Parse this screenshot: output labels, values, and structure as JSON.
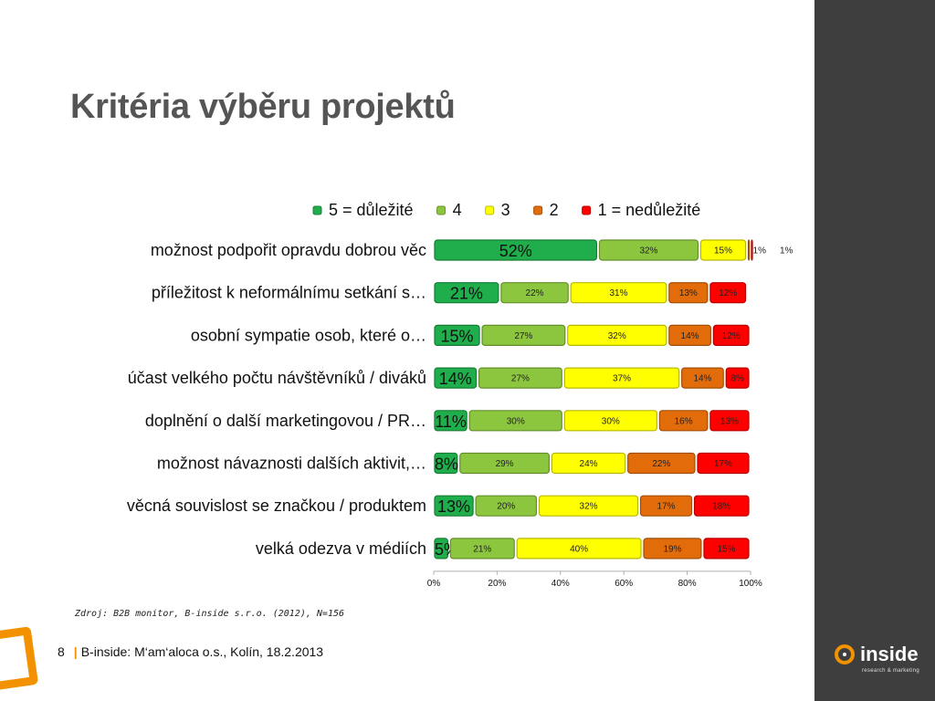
{
  "slide": {
    "title": "Kritéria výběru projektů",
    "source": "Zdroj: B2B monitor, B-inside s.r.o. (2012), N=156",
    "footer_page": "8",
    "footer_separator": "|",
    "footer_text": "B-inside: M‘am‘aloca o.s., Kolín, 18.2.2013",
    "logo_text": "inside",
    "logo_subtext": "research & marketing",
    "accent_color": "#f39200",
    "side_panel_color": "#3e3e3e"
  },
  "chart_data": {
    "type": "bar",
    "orientation": "horizontal",
    "stacked": true,
    "percent_stacked": true,
    "title": "",
    "xlabel": "",
    "ylabel": "",
    "xlim": [
      0,
      100
    ],
    "x_ticks": [
      "0%",
      "20%",
      "40%",
      "60%",
      "80%",
      "100%"
    ],
    "legend_position": "top",
    "categories": [
      "možnost podpořit opravdu dobrou věc",
      "příležitost k neformálnímu setkání s…",
      "osobní sympatie osob, které o…",
      "účast velkého počtu návštěvníků / diváků",
      "doplnění o další marketingovou / PR…",
      "možnost návaznosti dalších aktivit,…",
      "věcná souvislost se značkou / produktem",
      "velká odezva v médiích"
    ],
    "series": [
      {
        "name": "5 = důležité",
        "color": "#1fae4b",
        "values": [
          52,
          21,
          15,
          14,
          11,
          8,
          13,
          5
        ]
      },
      {
        "name": "4",
        "color": "#8cc63f",
        "values": [
          32,
          22,
          27,
          27,
          30,
          29,
          20,
          21
        ]
      },
      {
        "name": "3",
        "color": "#ffff00",
        "values": [
          15,
          31,
          32,
          37,
          30,
          24,
          32,
          40
        ]
      },
      {
        "name": "2",
        "color": "#e36c0a",
        "values": [
          1,
          13,
          14,
          14,
          16,
          22,
          17,
          19
        ]
      },
      {
        "name": "1 = nedůležité",
        "color": "#ff0000",
        "values": [
          1,
          12,
          12,
          8,
          13,
          17,
          18,
          15
        ]
      }
    ]
  }
}
